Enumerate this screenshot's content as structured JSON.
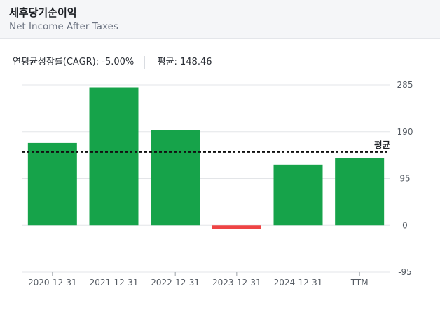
{
  "header": {
    "title": "세후당기순이익",
    "subtitle": "Net Income After Taxes"
  },
  "stats": {
    "cagr_label": "연평균성장률(CAGR):",
    "cagr_value": "-5.00%",
    "avg_label": "평균:",
    "avg_value": "148.46"
  },
  "chart_data": {
    "type": "bar",
    "title": "세후당기순이익",
    "subtitle": "Net Income After Taxes",
    "categories": [
      "2020-12-31",
      "2021-12-31",
      "2022-12-31",
      "2023-12-31",
      "2024-12-31",
      "TTM"
    ],
    "values": [
      167,
      280,
      193,
      -8,
      123,
      136
    ],
    "ylim": [
      -95,
      285
    ],
    "yticks": [
      285,
      190,
      95,
      0,
      -95
    ],
    "average": 148.46,
    "average_label": "평균",
    "grid": true,
    "y_axis_side": "right",
    "colors": {
      "positive": "#16a34a",
      "negative": "#ef4444",
      "average_line": "#111111",
      "grid": "#e3e5e8"
    }
  }
}
